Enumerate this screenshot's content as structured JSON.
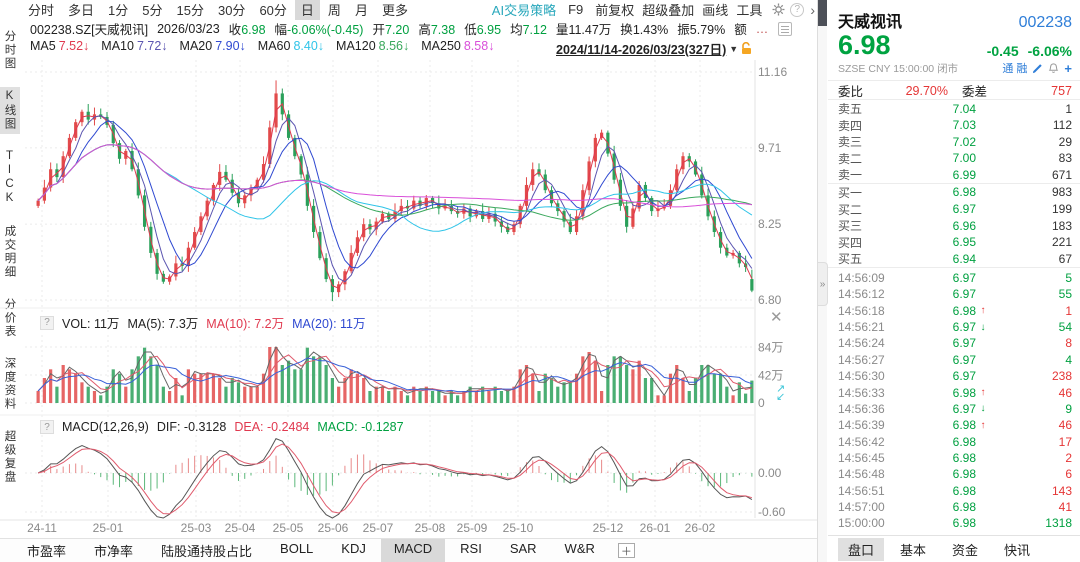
{
  "toolbar": {
    "period_tabs": [
      {
        "label": "分时",
        "selected": false
      },
      {
        "label": "多日",
        "selected": false
      },
      {
        "label": "1分",
        "selected": false
      },
      {
        "label": "5分",
        "selected": false
      },
      {
        "label": "15分",
        "selected": false
      },
      {
        "label": "30分",
        "selected": false
      },
      {
        "label": "60分",
        "selected": false
      },
      {
        "label": "日",
        "selected": true
      },
      {
        "label": "周",
        "selected": false
      },
      {
        "label": "月",
        "selected": false
      },
      {
        "label": "更多",
        "selected": false
      }
    ],
    "ai_strategy": "AI交易策略",
    "f9": "F9",
    "right_items": [
      "前复权",
      "超级叠加",
      "画线",
      "工具"
    ],
    "help": "?",
    "chevron": "›"
  },
  "info_bar": {
    "symbol": "002238.SZ[天威视讯]",
    "date": "2026/03/23",
    "fields": [
      {
        "label": "收",
        "value": "6.98",
        "color": "green"
      },
      {
        "label": "幅",
        "value": "-6.06%(-0.45)",
        "color": "green"
      },
      {
        "label": "开",
        "value": "7.20",
        "color": "green"
      },
      {
        "label": "高",
        "value": "7.38",
        "color": "green"
      },
      {
        "label": "低",
        "value": "6.95",
        "color": "green"
      },
      {
        "label": "均",
        "value": "7.12",
        "color": "green"
      },
      {
        "label": "量",
        "value": "11.47万",
        "color": "black"
      },
      {
        "label": "换",
        "value": "1.43%",
        "color": "black"
      },
      {
        "label": "振",
        "value": "5.79%",
        "color": "black"
      },
      {
        "label": "额",
        "value": "",
        "color": "black"
      }
    ],
    "ellipsis": "…"
  },
  "ma_bar": {
    "items": [
      {
        "label": "MA5",
        "value": "7.52",
        "arrow": "↓",
        "color": "#e0394f"
      },
      {
        "label": "MA10",
        "value": "7.72",
        "arrow": "↓",
        "color": "#5b55b0"
      },
      {
        "label": "MA20",
        "value": "7.90",
        "arrow": "↓",
        "color": "#2f49d1"
      },
      {
        "label": "MA60",
        "value": "8.40",
        "arrow": "↓",
        "color": "#2fc4e8"
      },
      {
        "label": "MA120",
        "value": "8.56",
        "arrow": "↓",
        "color": "#3aa85c"
      },
      {
        "label": "MA250",
        "value": "8.58",
        "arrow": "↓",
        "color": "#d94fd9"
      }
    ],
    "date_range": "2024/11/14-2026/03/23(327日)",
    "dropdown_arrow": "▼"
  },
  "sidebar": {
    "items": [
      {
        "label": "分时图",
        "selected": false
      },
      {
        "label": "K线图",
        "selected": true
      },
      {
        "label": "TICK",
        "selected": false
      },
      {
        "label": "成交明细",
        "selected": false
      },
      {
        "label": "分价表",
        "selected": false
      },
      {
        "label": "深度资料",
        "selected": false
      },
      {
        "label": "超级复盘",
        "selected": false
      }
    ]
  },
  "vol_pane_label": {
    "help": "?",
    "vol": "VOL: 11万",
    "ma5": "MA(5): 7.3万",
    "ma10": "MA(10): 7.2万",
    "ma20": "MA(20): 11万"
  },
  "macd_pane_label": {
    "help": "?",
    "name": "MACD(12,26,9)",
    "dif": "DIF: -0.3128",
    "dea": "DEA: -0.2484",
    "macd": "MACD: -0.1287"
  },
  "indicator_tabs": [
    {
      "label": "市盈率",
      "selected": false
    },
    {
      "label": "市净率",
      "selected": false
    },
    {
      "label": "陆股通持股占比",
      "selected": false
    },
    {
      "label": "BOLL",
      "selected": false
    },
    {
      "label": "KDJ",
      "selected": false
    },
    {
      "label": "MACD",
      "selected": true
    },
    {
      "label": "RSI",
      "selected": false
    },
    {
      "label": "SAR",
      "selected": false
    },
    {
      "label": "W&R",
      "selected": false
    }
  ],
  "indicator_add": "＋",
  "quote_panel": {
    "name": "天威视讯",
    "code": "002238",
    "price": "6.98",
    "change": "-0.45",
    "change_pct": "-6.06%",
    "exchange": "SZSE",
    "currency": "CNY",
    "time": "15:00:00",
    "status": "闭市",
    "margin_flags": [
      "通",
      "融"
    ],
    "weibi_label": "委比",
    "weibi": "29.70%",
    "weicha_label": "委差",
    "weicha": "757",
    "asks": [
      {
        "label": "卖五",
        "price": "7.04",
        "vol": "1"
      },
      {
        "label": "卖四",
        "price": "7.03",
        "vol": "112"
      },
      {
        "label": "卖三",
        "price": "7.02",
        "vol": "29"
      },
      {
        "label": "卖二",
        "price": "7.00",
        "vol": "83"
      },
      {
        "label": "卖一",
        "price": "6.99",
        "vol": "671"
      }
    ],
    "bids": [
      {
        "label": "买一",
        "price": "6.98",
        "vol": "983"
      },
      {
        "label": "买二",
        "price": "6.97",
        "vol": "199"
      },
      {
        "label": "买三",
        "price": "6.96",
        "vol": "183"
      },
      {
        "label": "买四",
        "price": "6.95",
        "vol": "221"
      },
      {
        "label": "买五",
        "price": "6.94",
        "vol": "67"
      }
    ],
    "ticks": [
      {
        "time": "14:56:09",
        "price": "6.97",
        "dir": "",
        "vol": "5",
        "vol_color": "green"
      },
      {
        "time": "14:56:12",
        "price": "6.97",
        "dir": "",
        "vol": "55",
        "vol_color": "green"
      },
      {
        "time": "14:56:18",
        "price": "6.98",
        "dir": "up",
        "vol": "1",
        "vol_color": "red"
      },
      {
        "time": "14:56:21",
        "price": "6.97",
        "dir": "down",
        "vol": "54",
        "vol_color": "green"
      },
      {
        "time": "14:56:24",
        "price": "6.97",
        "dir": "",
        "vol": "8",
        "vol_color": "red"
      },
      {
        "time": "14:56:27",
        "price": "6.97",
        "dir": "",
        "vol": "4",
        "vol_color": "green"
      },
      {
        "time": "14:56:30",
        "price": "6.97",
        "dir": "",
        "vol": "238",
        "vol_color": "red"
      },
      {
        "time": "14:56:33",
        "price": "6.98",
        "dir": "up",
        "vol": "46",
        "vol_color": "red"
      },
      {
        "time": "14:56:36",
        "price": "6.97",
        "dir": "down",
        "vol": "9",
        "vol_color": "green"
      },
      {
        "time": "14:56:39",
        "price": "6.98",
        "dir": "up",
        "vol": "46",
        "vol_color": "red"
      },
      {
        "time": "14:56:42",
        "price": "6.98",
        "dir": "",
        "vol": "17",
        "vol_color": "red"
      },
      {
        "time": "14:56:45",
        "price": "6.98",
        "dir": "",
        "vol": "2",
        "vol_color": "red"
      },
      {
        "time": "14:56:48",
        "price": "6.98",
        "dir": "",
        "vol": "6",
        "vol_color": "red"
      },
      {
        "time": "14:56:51",
        "price": "6.98",
        "dir": "",
        "vol": "143",
        "vol_color": "red"
      },
      {
        "time": "14:57:00",
        "price": "6.98",
        "dir": "",
        "vol": "41",
        "vol_color": "red"
      },
      {
        "time": "15:00:00",
        "price": "6.98",
        "dir": "",
        "vol": "1318",
        "vol_color": "green"
      }
    ],
    "tabs": [
      {
        "label": "盘口",
        "selected": true
      },
      {
        "label": "基本",
        "selected": false
      },
      {
        "label": "资金",
        "selected": false
      },
      {
        "label": "快讯",
        "selected": false
      }
    ],
    "collapse_handle": "»"
  },
  "chart_data": {
    "type": "candlestick",
    "period": "daily",
    "date_range": "2024/11/14-2026/03/23",
    "bar_count_label": "327日",
    "ylim": [
      6.8,
      11.16
    ],
    "y_ticks_price": [
      {
        "label": "11.16",
        "value": 11.16
      },
      {
        "label": "9.71",
        "value": 9.71
      },
      {
        "label": "8.25",
        "value": 8.25
      },
      {
        "label": "6.80",
        "value": 6.8
      }
    ],
    "y_ticks_volume": [
      {
        "label": "84万",
        "value": 84
      },
      {
        "label": "42万",
        "value": 42
      },
      {
        "label": "0",
        "value": 0
      }
    ],
    "y_ticks_macd": [
      {
        "label": "0.00",
        "value": 0
      },
      {
        "label": "-0.60",
        "value": -0.6
      }
    ],
    "x_ticks": [
      {
        "label": "24-11",
        "x": 42
      },
      {
        "label": "25-01",
        "x": 108
      },
      {
        "label": "25-03",
        "x": 196
      },
      {
        "label": "25-04",
        "x": 240
      },
      {
        "label": "25-05",
        "x": 288
      },
      {
        "label": "25-06",
        "x": 333
      },
      {
        "label": "25-07",
        "x": 378
      },
      {
        "label": "25-08",
        "x": 430
      },
      {
        "label": "25-09",
        "x": 472
      },
      {
        "label": "25-10",
        "x": 518
      },
      {
        "label": "25-12",
        "x": 608
      },
      {
        "label": "26-01",
        "x": 655
      },
      {
        "label": "26-02",
        "x": 700
      }
    ],
    "first_open": 8.6,
    "closes": [
      8.7,
      8.95,
      9.3,
      9.15,
      9.55,
      9.9,
      10.2,
      10.4,
      10.25,
      10.35,
      10.3,
      10.15,
      9.8,
      9.5,
      9.65,
      9.3,
      8.8,
      8.2,
      7.7,
      7.3,
      7.15,
      7.25,
      7.5,
      7.45,
      7.8,
      8.1,
      8.4,
      8.7,
      9.0,
      9.25,
      9.1,
      8.85,
      8.65,
      8.8,
      8.95,
      9.1,
      9.4,
      10.1,
      10.75,
      10.35,
      9.9,
      9.55,
      9.2,
      8.6,
      8.1,
      7.6,
      7.2,
      6.95,
      7.1,
      7.35,
      7.7,
      8.0,
      8.25,
      8.15,
      8.3,
      8.45,
      8.35,
      8.5,
      8.6,
      8.55,
      8.7,
      8.6,
      8.75,
      8.65,
      8.55,
      8.6,
      8.5,
      8.45,
      8.55,
      8.4,
      8.5,
      8.35,
      8.45,
      8.3,
      8.2,
      8.1,
      8.25,
      8.6,
      9.0,
      9.3,
      9.2,
      8.9,
      8.65,
      8.5,
      8.3,
      8.1,
      8.4,
      8.9,
      9.45,
      9.9,
      10.0,
      9.6,
      9.1,
      8.6,
      8.2,
      8.55,
      9.0,
      8.75,
      8.5,
      8.55,
      8.6,
      8.9,
      9.3,
      9.55,
      9.45,
      9.2,
      8.8,
      8.4,
      8.1,
      7.8,
      7.65,
      7.7,
      7.5,
      7.43,
      6.98
    ],
    "last_candle": {
      "open": 7.2,
      "high": 7.38,
      "low": 6.95,
      "close": 6.98
    },
    "wick_overrides": {
      "38": {
        "high": 11.0
      },
      "47": {
        "low": 6.78
      }
    },
    "volume_cap": 84,
    "ma_windows": [
      2,
      4,
      7,
      21,
      42,
      88
    ],
    "vol_ma_windows": [
      2,
      4,
      7
    ],
    "colors": {
      "up": "#e24a4a",
      "down": "#2aa05a",
      "ma": [
        "#e0394f",
        "#5b55b0",
        "#2f49d1",
        "#2fc4e8",
        "#3aa85c",
        "#d94fd9"
      ],
      "vol_ma": [
        "#666666",
        "#e05b6d",
        "#3a62d8"
      ],
      "dif": "#555555",
      "dea": "#e05b6d",
      "grid": "#ebebeb"
    }
  }
}
